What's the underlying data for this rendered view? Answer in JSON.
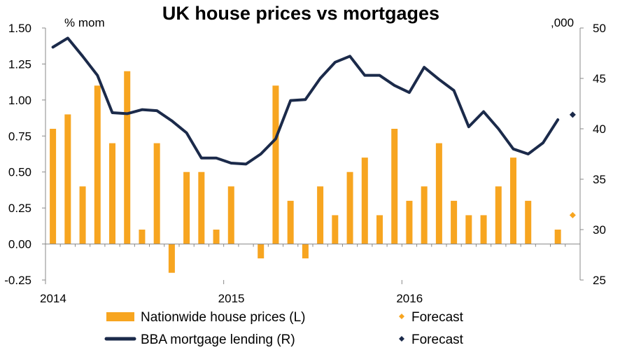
{
  "chart_data": {
    "type": "bar+line",
    "title": "UK house prices vs mortgages",
    "left_axis": {
      "unit_label": "% mom",
      "ylim": [
        -0.25,
        1.5
      ],
      "ticks": [
        "1.50",
        "1.25",
        "1.00",
        "0.75",
        "0.50",
        "0.25",
        "0.00",
        "-0.25"
      ],
      "tick_values": [
        1.5,
        1.25,
        1.0,
        0.75,
        0.5,
        0.25,
        0.0,
        -0.25
      ]
    },
    "right_axis": {
      "unit_label": ",000",
      "ylim": [
        25,
        50
      ],
      "ticks": [
        "50",
        "45",
        "40",
        "35",
        "30",
        "25"
      ],
      "tick_values": [
        50,
        45,
        40,
        35,
        30,
        25
      ]
    },
    "x_axis": {
      "year_labels": [
        "2014",
        "2015",
        "2016"
      ],
      "year_label_indices": [
        0,
        12,
        24
      ],
      "n_points": 36
    },
    "series": [
      {
        "name": "Nationwide house prices (L)",
        "type": "bar",
        "color": "#F7A520",
        "values": [
          0.8,
          0.9,
          0.4,
          1.1,
          0.7,
          1.2,
          0.1,
          0.7,
          -0.2,
          0.5,
          0.5,
          0.1,
          0.4,
          null,
          -0.1,
          1.1,
          0.3,
          -0.1,
          0.4,
          0.2,
          0.5,
          0.6,
          0.2,
          0.8,
          0.3,
          0.4,
          0.7,
          0.3,
          0.2,
          0.2,
          0.4,
          0.6,
          0.3,
          null,
          0.1,
          null
        ]
      },
      {
        "name": "BBA mortgage lending (R)",
        "type": "line",
        "color": "#1B2A4A",
        "values": [
          48.1,
          49.0,
          47.2,
          45.3,
          41.6,
          41.5,
          41.9,
          41.8,
          40.8,
          39.6,
          37.1,
          37.1,
          36.6,
          36.5,
          37.5,
          39.0,
          42.8,
          42.9,
          45.0,
          46.6,
          47.2,
          45.3,
          45.3,
          44.3,
          43.6,
          46.1,
          44.9,
          43.8,
          40.2,
          41.7,
          40.0,
          38.0,
          37.5,
          38.6,
          40.9,
          null
        ]
      },
      {
        "name": "Forecast",
        "type": "marker",
        "axis": "left",
        "color": "#F7A520",
        "index": 35,
        "value": 0.2
      },
      {
        "name": "Forecast",
        "type": "marker",
        "axis": "right",
        "color": "#1B2A4A",
        "index": 35,
        "value": 41.4
      }
    ],
    "grid": false,
    "legend": {
      "placement": "bottom",
      "items": [
        {
          "label": "Nationwide house prices (L)",
          "symbol": "bar",
          "color": "#F7A520"
        },
        {
          "label": "Forecast",
          "symbol": "diamond",
          "color": "#F7A520"
        },
        {
          "label": "BBA mortgage lending (R)",
          "symbol": "line",
          "color": "#1B2A4A"
        },
        {
          "label": "Forecast",
          "symbol": "diamond",
          "color": "#1B2A4A"
        }
      ]
    }
  }
}
